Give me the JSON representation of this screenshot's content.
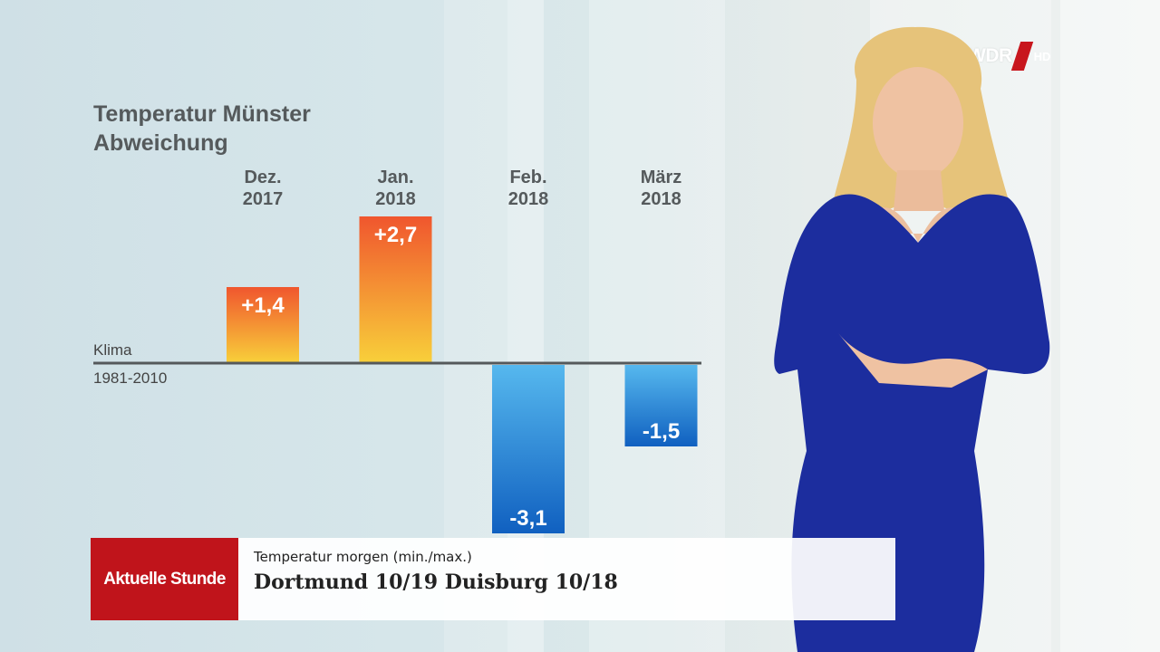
{
  "broadcaster": {
    "logo_text": "WDR",
    "logo_suffix": "HD",
    "brand_color": "#c8161d"
  },
  "chart_data": {
    "type": "bar",
    "title_line1": "Temperatur Münster",
    "title_line2": "Abweichung",
    "baseline_label_line1": "Klima",
    "baseline_label_line2": "1981-2010",
    "categories": [
      {
        "month": "Dez.",
        "year": "2017"
      },
      {
        "month": "Jan.",
        "year": "2018"
      },
      {
        "month": "Feb.",
        "year": "2018"
      },
      {
        "month": "März",
        "year": "2018"
      }
    ],
    "values": [
      1.4,
      2.7,
      -3.1,
      -1.5
    ],
    "labels": [
      "+1,4",
      "+2,7",
      "-3,1",
      "-1,5"
    ],
    "baseline": 0,
    "colors": {
      "warm_top": "#f0562e",
      "warm_bottom": "#f8d03a",
      "cold_top": "#56b8ee",
      "cold_bottom": "#1060c0"
    }
  },
  "lower_third": {
    "show_name": "Aktuelle Stunde",
    "subtitle": "Temperatur morgen (min./max.)",
    "headline": "Dortmund 10/19  Duisburg 10/18",
    "brand_color": "#c0141b"
  }
}
